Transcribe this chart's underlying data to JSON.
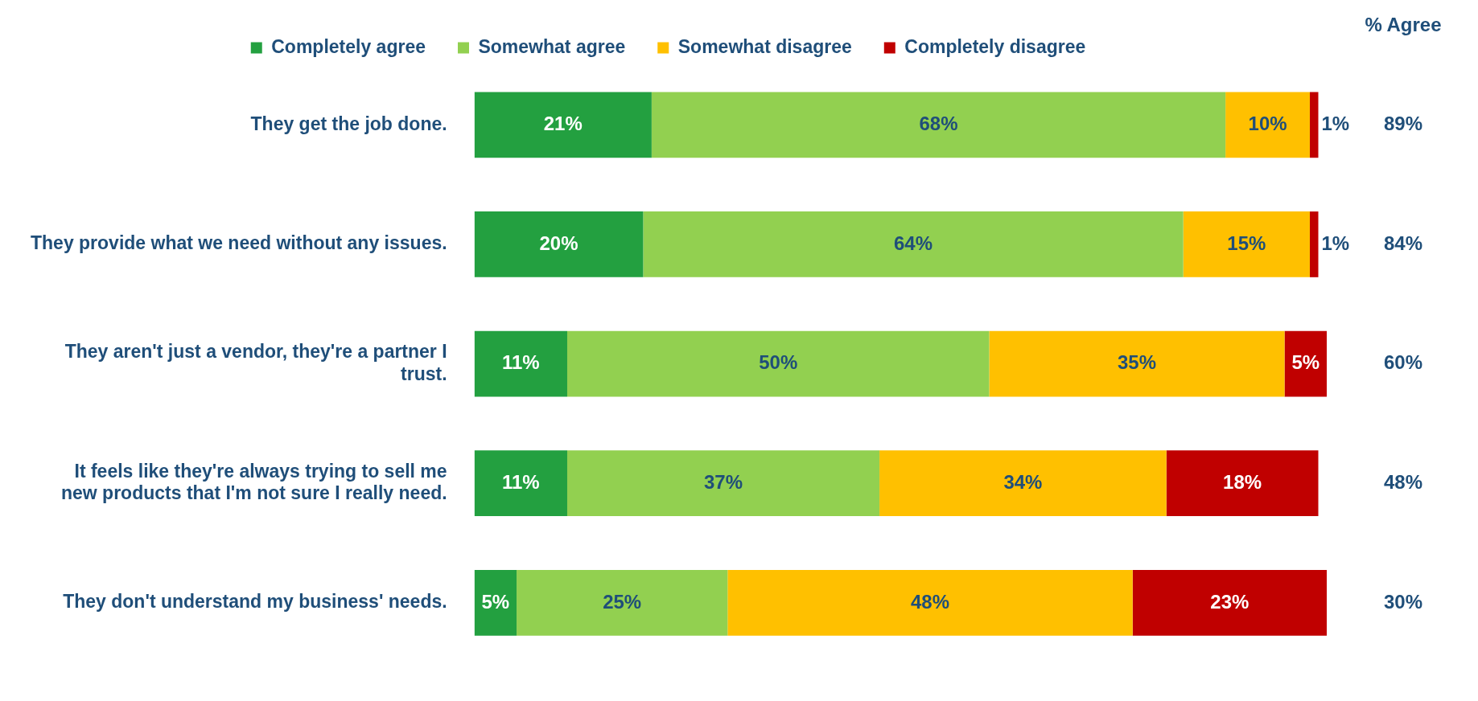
{
  "chart_data": {
    "type": "bar",
    "orientation": "horizontal",
    "stacked": true,
    "legend": "top",
    "tick_labels": "y",
    "categories": [
      "They get the job done.",
      "They provide what we need without any issues.",
      "They aren't just a vendor, they're a partner I trust.",
      "It feels like they're always trying to sell me new products that I'm not sure I really need.",
      "They don't understand my business' needs."
    ],
    "series": [
      {
        "name": "Completely agree",
        "color": "#23a040",
        "values": [
          21,
          20,
          11,
          11,
          5
        ],
        "value_labels": [
          "21%",
          "20%",
          "11%",
          "11%",
          "5%"
        ]
      },
      {
        "name": "Somewhat agree",
        "color": "#92d050",
        "values": [
          68,
          64,
          50,
          37,
          25
        ],
        "value_labels": [
          "68%",
          "64%",
          "50%",
          "37%",
          "25%"
        ]
      },
      {
        "name": "Somewhat disagree",
        "color": "#ffc000",
        "values": [
          10,
          15,
          35,
          34,
          48
        ],
        "value_labels": [
          "10%",
          "15%",
          "35%",
          "34%",
          "48%"
        ]
      },
      {
        "name": "Completely disagree",
        "color": "#c00000",
        "values": [
          1,
          1,
          5,
          18,
          23
        ],
        "value_labels": [
          "1%",
          "1%",
          "5%",
          "18%",
          "23%"
        ]
      }
    ],
    "annotations": [
      "% Agree",
      "89%",
      "84%",
      "60%",
      "48%",
      "30%"
    ]
  }
}
